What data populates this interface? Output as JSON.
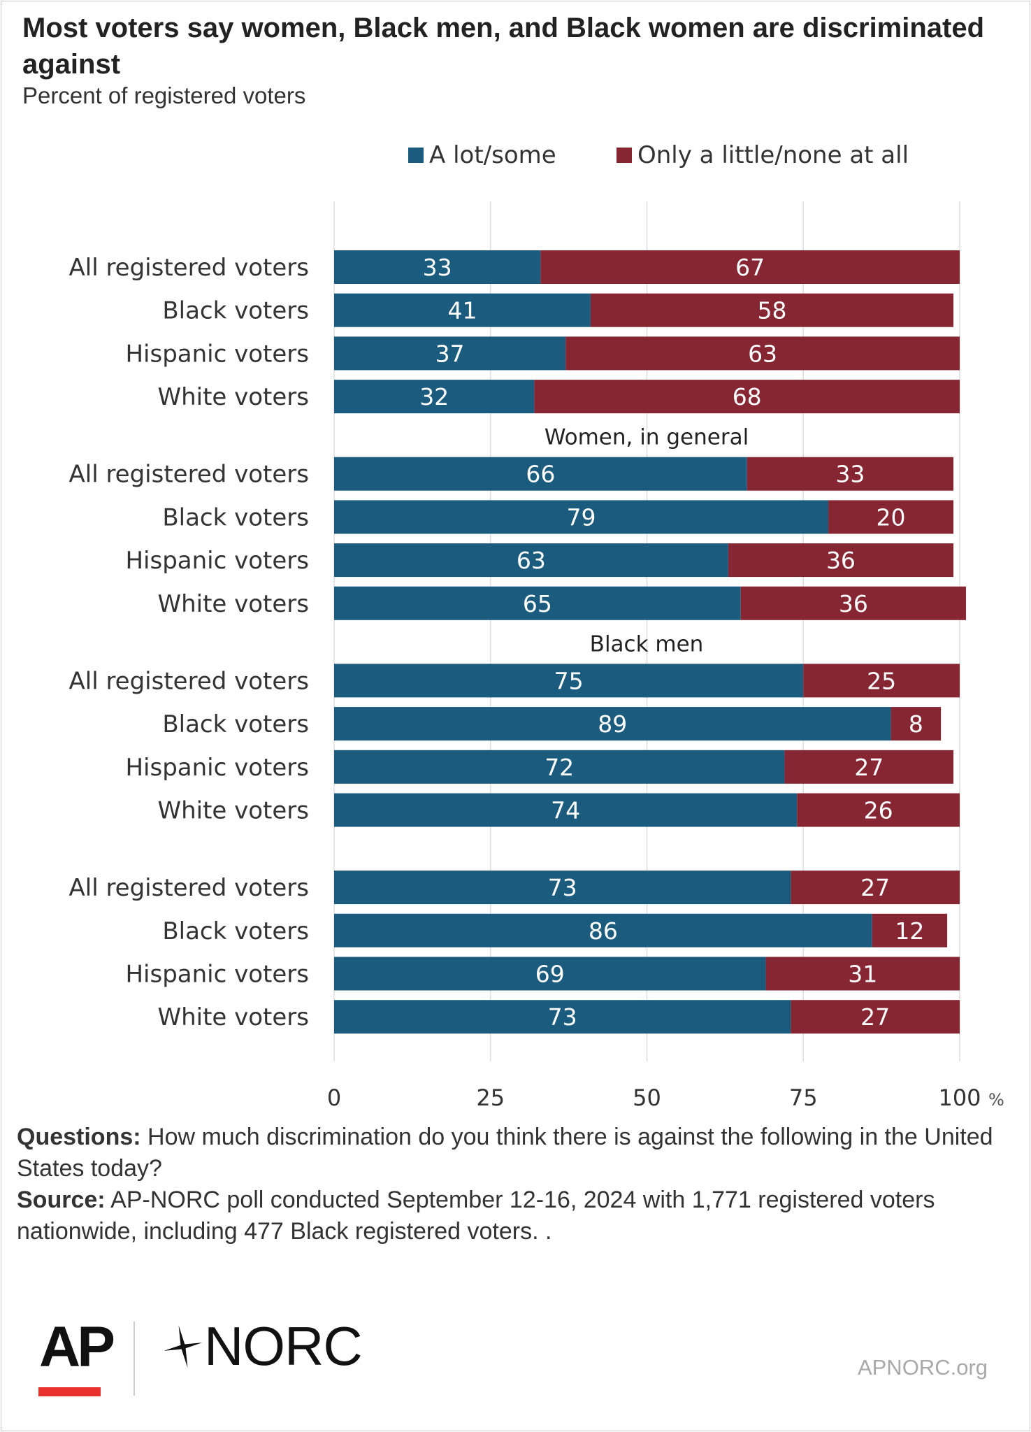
{
  "title": "Most voters say women, Black men, and Black women are discriminated against",
  "subtitle": "Percent of registered voters",
  "legend": {
    "a_lot": {
      "label": "A lot/some",
      "color": "#1b5c7e"
    },
    "little": {
      "label": "Only a little/none at all",
      "color": "#862633"
    }
  },
  "chart_data": {
    "type": "bar",
    "orientation": "horizontal",
    "stacked": true,
    "xlim": [
      0,
      100
    ],
    "x_ticks": [
      "0",
      "25",
      "50",
      "75",
      "100"
    ],
    "x_unit": "%",
    "grid": true,
    "legend_position": "top",
    "series_names": [
      "A lot/some",
      "Only a little/none at all"
    ],
    "groups": [
      {
        "label": "",
        "rows": [
          {
            "category": "All registered voters",
            "values": [
              33,
              67
            ]
          },
          {
            "category": "Black voters",
            "values": [
              41,
              58
            ]
          },
          {
            "category": "Hispanic voters",
            "values": [
              37,
              63
            ]
          },
          {
            "category": "White voters",
            "values": [
              32,
              68
            ]
          }
        ]
      },
      {
        "label": "Women, in general",
        "rows": [
          {
            "category": "All registered voters",
            "values": [
              66,
              33
            ]
          },
          {
            "category": "Black voters",
            "values": [
              79,
              20
            ]
          },
          {
            "category": "Hispanic voters",
            "values": [
              63,
              36
            ]
          },
          {
            "category": "White voters",
            "values": [
              65,
              36
            ]
          }
        ]
      },
      {
        "label": "Black men",
        "rows": [
          {
            "category": "All registered voters",
            "values": [
              75,
              25
            ]
          },
          {
            "category": "Black voters",
            "values": [
              89,
              8
            ]
          },
          {
            "category": "Hispanic voters",
            "values": [
              72,
              27
            ]
          },
          {
            "category": "White voters",
            "values": [
              74,
              26
            ]
          }
        ]
      },
      {
        "label": "",
        "rows": [
          {
            "category": "All registered voters",
            "values": [
              73,
              27
            ]
          },
          {
            "category": "Black voters",
            "values": [
              86,
              12
            ]
          },
          {
            "category": "Hispanic voters",
            "values": [
              69,
              31
            ]
          },
          {
            "category": "White voters",
            "values": [
              73,
              27
            ]
          }
        ]
      }
    ]
  },
  "notes": {
    "questions_label": "Questions:",
    "questions_text": " How much discrimination do you think there is against the following in the United States today?",
    "source_label": "Source:",
    "source_text": " AP-NORC poll conducted September 12-16, 2024 with 1,771 registered voters nationwide, including 477 Black registered voters. ."
  },
  "footer": {
    "ap_logo": "AP",
    "norc_logo": "NORC",
    "url": "APNORC.org"
  }
}
